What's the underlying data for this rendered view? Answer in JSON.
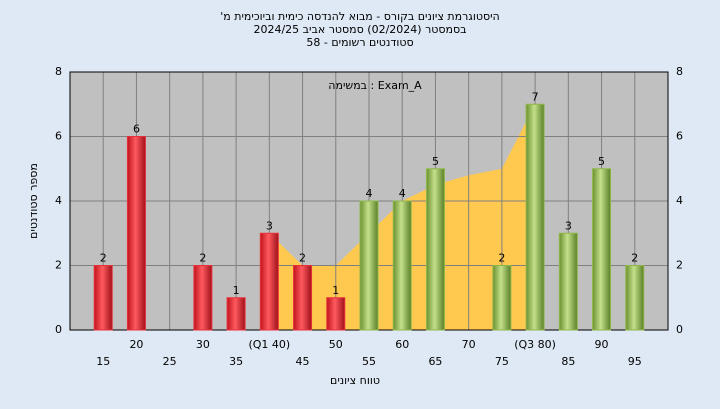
{
  "chart_data": {
    "type": "bar",
    "title": "היסטוגרמת ציונים בקורס - מבוא להנדסה כימית וביוכימית מ'",
    "subtitle": "בסמסטר (02/2024) סמסטר אביב 2024/25",
    "subtitle2": "סטודנטים רשומים - 58",
    "annotation": "Exam_A : במשימה",
    "y_label": "מספר סטודנטים",
    "x_label": "טווח ציונים",
    "categories": [
      "15",
      "20",
      "25",
      "30",
      "35",
      "(Q1 40)",
      "45",
      "50",
      "55",
      "60",
      "65",
      "70",
      "75",
      "(Q3 80)",
      "85",
      "90",
      "95"
    ],
    "values": [
      2,
      6,
      null,
      2,
      1,
      3,
      2,
      1,
      4,
      4,
      5,
      null,
      2,
      7,
      3,
      5,
      2
    ],
    "colors": [
      "#e8303a",
      "#e8303a",
      "#e8303a",
      "#e8303a",
      "#e8303a",
      "#e8303a",
      "#e8303a",
      "#e8303a",
      "#8fb84a",
      "#8fb84a",
      "#8fb84a",
      "#8fb84a",
      "#8fb84a",
      "#8fb84a",
      "#8fb84a",
      "#8fb84a",
      "#8fb84a"
    ],
    "area": {
      "color": "#ffc94f",
      "values": [
        null,
        null,
        null,
        null,
        null,
        3,
        2,
        2,
        3,
        4,
        4.5,
        4.8,
        5,
        7,
        null,
        null,
        null
      ]
    },
    "ylim": [
      0,
      8
    ],
    "yticks": [
      0,
      2,
      4,
      6,
      8
    ],
    "grid": true
  }
}
